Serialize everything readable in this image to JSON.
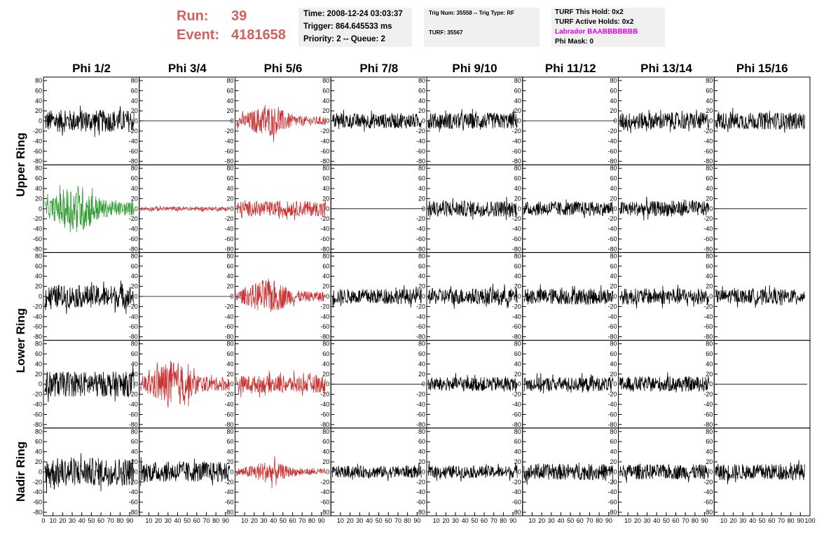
{
  "header": {
    "run_label": "Run:",
    "run_value": "39",
    "event_label": "Event:",
    "event_value": "4181658",
    "box1": {
      "time": "Time: 2008-12-24 03:03:37",
      "trigger": "Trigger: 864.645533 ms",
      "priority": "Priority: 2 -- Queue: 2"
    },
    "box2": {
      "trig": "Trig Num: 35558 -- Trig Type: RF",
      "turf": "TURF: 35567"
    },
    "box3": {
      "this_hold": "TURF This Hold: 0x2",
      "active_holds": "TURF Active Holds: 0x2",
      "labrador": "Labrador BAABBBBBBB",
      "phi_mask": "Phi Mask: 0"
    }
  },
  "chart_data": {
    "type": "line",
    "columns": [
      "Phi 1/2",
      "Phi 3/4",
      "Phi 5/6",
      "Phi 7/8",
      "Phi 9/10",
      "Phi 11/12",
      "Phi 13/14",
      "Phi 15/16"
    ],
    "ring_labels": [
      "Upper Ring",
      "Lower Ring",
      "Nadir Ring"
    ],
    "ylim": [
      -80,
      80
    ],
    "yticks": [
      "-80",
      "-60",
      "-40",
      "-20",
      "0",
      "20",
      "40",
      "60",
      "80"
    ],
    "xticks": [
      "0",
      "10",
      "20",
      "30",
      "40",
      "50",
      "60",
      "70",
      "80",
      "90",
      "100"
    ],
    "colors": {
      "normal": "#000000",
      "triggered": "#c83232",
      "highlight": "#2e9a2e"
    },
    "panels": [
      [
        {
          "color": "normal",
          "amp": 22
        },
        {
          "color": "normal",
          "amp": 0
        },
        {
          "color": "triggered",
          "amp": 25,
          "burst": true
        },
        {
          "color": "normal",
          "amp": 15
        },
        {
          "color": "normal",
          "amp": 16
        },
        {
          "color": "normal",
          "amp": 0
        },
        {
          "color": "normal",
          "amp": 17
        },
        {
          "color": "normal",
          "amp": 17
        }
      ],
      [
        {
          "color": "highlight",
          "amp": 40,
          "burst": true
        },
        {
          "color": "triggered",
          "amp": 4
        },
        {
          "color": "triggered",
          "amp": 15
        },
        {
          "color": "normal",
          "amp": 0
        },
        {
          "color": "normal",
          "amp": 16
        },
        {
          "color": "normal",
          "amp": 14
        },
        {
          "color": "normal",
          "amp": 15
        },
        {
          "color": "normal",
          "amp": 0
        }
      ],
      [
        {
          "color": "normal",
          "amp": 22
        },
        {
          "color": "normal",
          "amp": 0
        },
        {
          "color": "triggered",
          "amp": 28,
          "burst": true
        },
        {
          "color": "normal",
          "amp": 15
        },
        {
          "color": "normal",
          "amp": 16
        },
        {
          "color": "normal",
          "amp": 16
        },
        {
          "color": "normal",
          "amp": 16
        },
        {
          "color": "normal",
          "amp": 14
        }
      ],
      [
        {
          "color": "normal",
          "amp": 25
        },
        {
          "color": "triggered",
          "amp": 38,
          "burst": true
        },
        {
          "color": "triggered",
          "amp": 17
        },
        {
          "color": "normal",
          "amp": 0
        },
        {
          "color": "normal",
          "amp": 14
        },
        {
          "color": "normal",
          "amp": 14
        },
        {
          "color": "normal",
          "amp": 15
        },
        {
          "color": "normal",
          "amp": 0
        }
      ],
      [
        {
          "color": "normal",
          "amp": 28
        },
        {
          "color": "normal",
          "amp": 20
        },
        {
          "color": "triggered",
          "amp": 17,
          "burst": true
        },
        {
          "color": "normal",
          "amp": 12
        },
        {
          "color": "normal",
          "amp": 12
        },
        {
          "color": "normal",
          "amp": 16
        },
        {
          "color": "normal",
          "amp": 15
        },
        {
          "color": "normal",
          "amp": 16
        }
      ]
    ]
  }
}
